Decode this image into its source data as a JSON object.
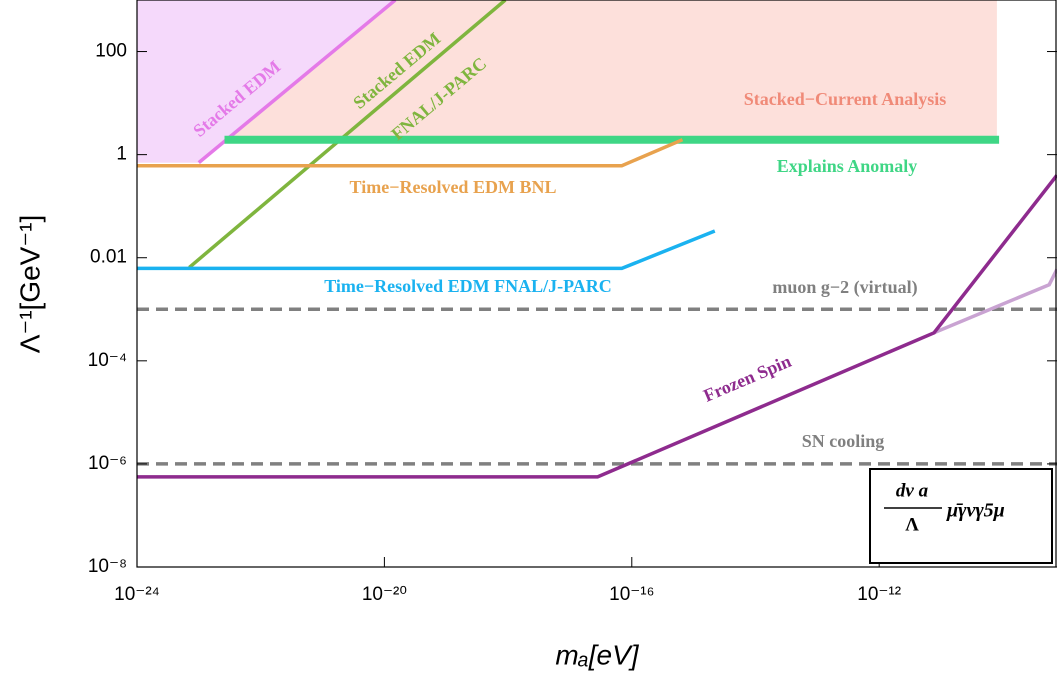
{
  "chart_data": {
    "type": "line",
    "xscale": "log",
    "yscale": "log",
    "x_label": "mₐ[eV]",
    "y_label": "Λ⁻¹[GeV⁻¹]",
    "xlim": [
      1e-24,
      7.5e-10
    ],
    "ylim": [
      1e-08,
      1000
    ],
    "xticks": [
      {
        "value": 1e-24,
        "label": "10⁻²⁴"
      },
      {
        "value": 1e-20,
        "label": "10⁻²⁰"
      },
      {
        "value": 1e-16,
        "label": "10⁻¹⁶"
      },
      {
        "value": 1e-12,
        "label": "10⁻¹²"
      }
    ],
    "yticks": [
      {
        "value": 1e-08,
        "label": "10⁻⁸"
      },
      {
        "value": 1e-06,
        "label": "10⁻⁶"
      },
      {
        "value": 0.0001,
        "label": "10⁻⁴"
      },
      0.01,
      1,
      100
    ],
    "formula_numerator": "dν a",
    "formula_denominator": "Λ",
    "formula_operator": "μ̄γνγ5μ",
    "series": [
      {
        "style": "fill",
        "color": "#fde0db",
        "x": [
          1e-24,
          1e-23,
          1e-23,
          8e-11,
          8e-11,
          1e-24
        ],
        "values": [
          0.7,
          0.7,
          2,
          2,
          1000,
          1000
        ]
      },
      {
        "style": "fill",
        "color": "#f5d9fb",
        "x": [
          1e-24,
          1e-23,
          1.5e-20,
          1e-24
        ],
        "values": [
          0.7,
          0.7,
          1000,
          1000
        ]
      },
      {
        "name": "Stacked−Current Analysis",
        "style": "none",
        "color": "#f08a78",
        "x": [],
        "values": []
      },
      {
        "name": "Stacked EDM",
        "style": "line",
        "color": "#e47ae8",
        "x": [
          1e-23,
          1.5e-20
        ],
        "values": [
          0.7,
          1000
        ]
      },
      {
        "labels": [
          "Stacked EDM",
          "FNAL/J-PARC"
        ],
        "style": "line",
        "color": "#7fb53e",
        "x": [
          7e-24,
          9e-19
        ],
        "values": [
          0.0065,
          1000
        ]
      },
      {
        "name": "Explains Anomaly",
        "style": "thick",
        "color": "#3fd685",
        "x": [
          2.6e-23,
          8.7e-11
        ],
        "values": [
          1.95,
          1.95
        ]
      },
      {
        "name": "Time−Resolved EDM BNL",
        "style": "line",
        "color": "#e8a24e",
        "x": [
          1e-24,
          6.9e-17,
          6.6e-16
        ],
        "values": [
          0.61,
          0.61,
          1.95
        ]
      },
      {
        "name": "Time−Resolved EDM FNAL/J-PARC",
        "style": "line",
        "color": "#1ab2f0",
        "x": [
          1e-24,
          6.9e-17,
          2.2e-15
        ],
        "values": [
          0.0062,
          0.0062,
          0.033
        ]
      },
      {
        "name": "muon g−2 (virtual)",
        "style": "dash",
        "color": "#808080",
        "x": [
          1e-24,
          7.5e-10
        ],
        "values": [
          0.001,
          0.001
        ]
      },
      {
        "name": "SN cooling",
        "style": "dash",
        "color": "#808080",
        "x": [
          1e-24,
          7.5e-10
        ],
        "values": [
          1e-06,
          1e-06
        ]
      },
      {
        "style": "line",
        "color": "#c9a3d2",
        "x": [
          7.7e-12,
          5.6e-10,
          7.5e-10
        ],
        "values": [
          0.00035,
          0.003,
          0.006
        ]
      },
      {
        "name": "Frozen Spin",
        "style": "line",
        "color": "#8e2b8e",
        "x": [
          1e-24,
          2.8e-17,
          7.7e-12,
          7.5e-10
        ],
        "values": [
          5.6e-07,
          5.6e-07,
          0.00035,
          0.4
        ]
      }
    ]
  }
}
